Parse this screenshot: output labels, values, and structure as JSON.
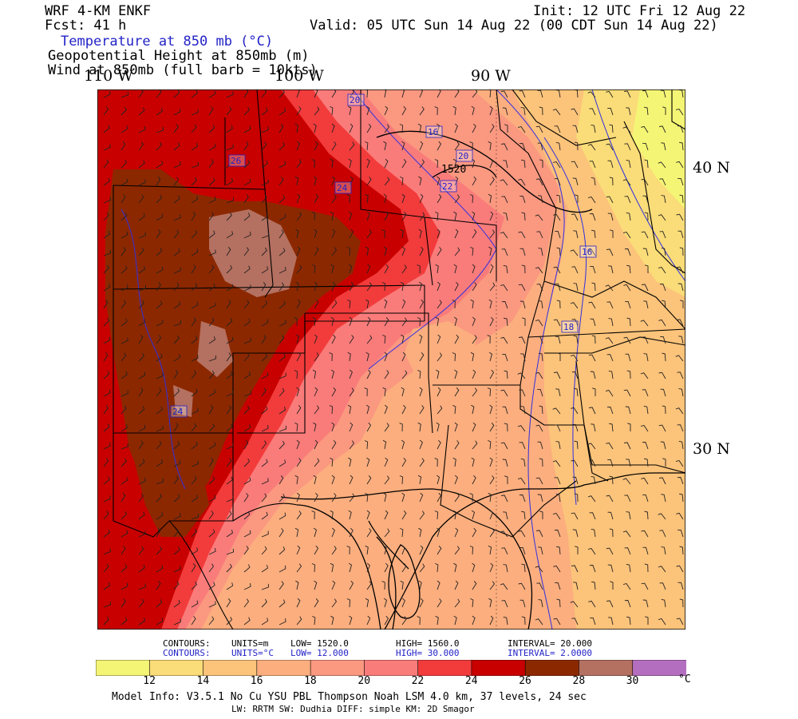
{
  "header": {
    "model": "WRF 4-KM ENKF",
    "init": "Init: 12 UTC Fri 12 Aug 22",
    "fcst": "Fcst:   41 h",
    "valid": "Valid: 05 UTC Sun 14 Aug 22 (00 CDT Sun 14 Aug 22)",
    "field1": "Temperature at 850 mb (°C)",
    "field2": "Geopotential Height at 850mb (m)",
    "field3": "Wind at 850mb (full barb = 10kts)"
  },
  "axes": {
    "lon_labels": [
      "110 W",
      "100 W",
      "90 W"
    ],
    "lat_labels": [
      "40 N",
      "30 N"
    ]
  },
  "contour_labels": {
    "height": [
      "1520"
    ],
    "temperature": [
      "20",
      "16",
      "20",
      "22",
      "26",
      "24",
      "16",
      "18",
      "24"
    ]
  },
  "contour_info": {
    "height": {
      "contours": "CONTOURS:",
      "units": "UNITS=m",
      "low": "LOW=   1520.0",
      "high": "HIGH=  1560.0",
      "interval": "INTERVAL=   20.000"
    },
    "temperature": {
      "contours": "CONTOURS:",
      "units": "UNITS=°C",
      "low": "LOW=   12.000",
      "high": "HIGH=  30.000",
      "interval": "INTERVAL=   2.0000"
    }
  },
  "colorbar": {
    "tick_labels": [
      "12",
      "14",
      "16",
      "18",
      "20",
      "22",
      "24",
      "26",
      "28",
      "30"
    ],
    "unit": "°C",
    "colors": [
      "#f5f575",
      "#fadc78",
      "#fcc37a",
      "#fcae7e",
      "#fb9880",
      "#f97c7a",
      "#f23b3b",
      "#c80000",
      "#8c2800",
      "#b47060",
      "#b46ec0"
    ]
  },
  "footer": {
    "line1": "Model Info: V3.5.1   No Cu   YSU PBL  Thompson     Noah LSM  4.0 km,  37 levels,   24 sec",
    "line2": "LW: RRTM SW: Dudhia  DIFF: simple KM: 2D Smagor"
  }
}
